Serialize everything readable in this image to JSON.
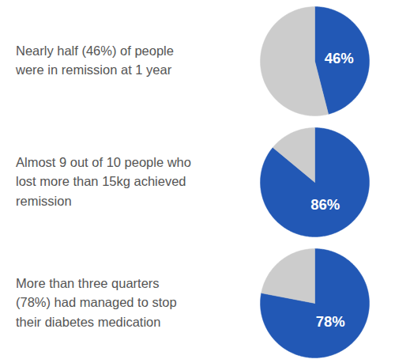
{
  "chart_data": [
    {
      "type": "pie",
      "values": [
        46,
        54
      ],
      "colors": [
        "#2258B5",
        "#CCCCCC"
      ],
      "data_labels": true,
      "value_labels": [
        "46%",
        null
      ],
      "annotation": "Nearly half (46%) of people\nwere in remission at 1 year"
    },
    {
      "type": "pie",
      "values": [
        86,
        14
      ],
      "colors": [
        "#2258B5",
        "#CCCCCC"
      ],
      "data_labels": true,
      "value_labels": [
        "86%",
        null
      ],
      "annotation": "Almost 9 out of 10 people who\nlost more than 15kg achieved\nremission"
    },
    {
      "type": "pie",
      "values": [
        78,
        22
      ],
      "colors": [
        "#2258B5",
        "#CCCCCC"
      ],
      "data_labels": true,
      "value_labels": [
        "78%",
        null
      ],
      "annotation": "More than three quarters\n(78%) had managed to stop\ntheir diabetes medication"
    }
  ]
}
